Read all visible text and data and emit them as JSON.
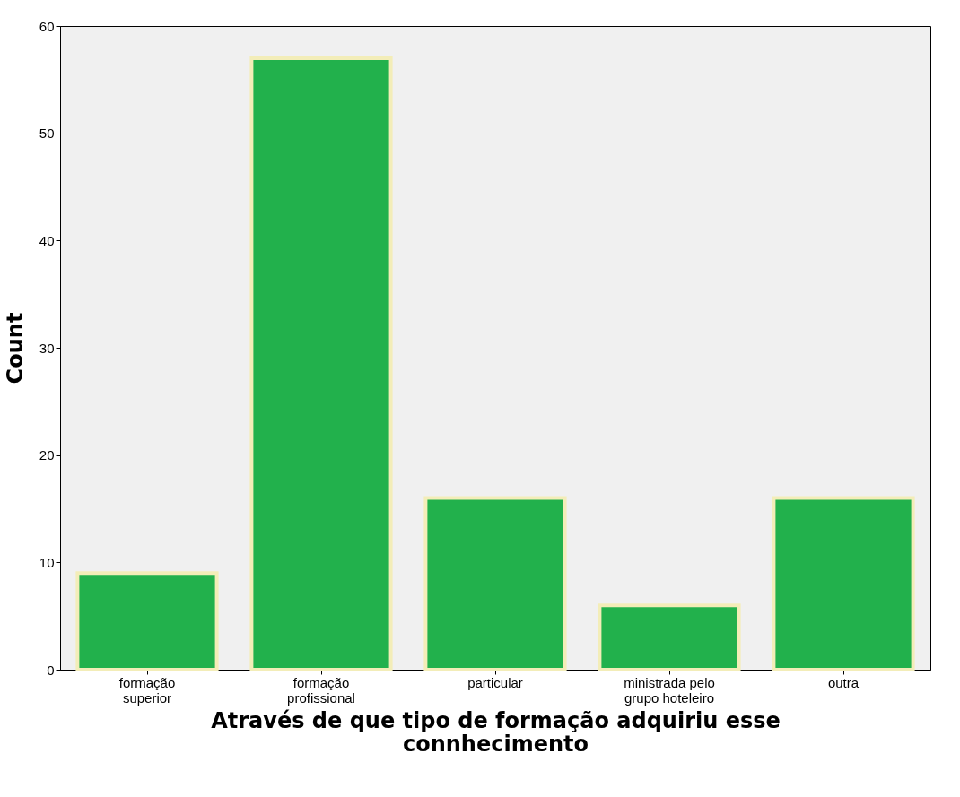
{
  "chart_data": {
    "type": "bar",
    "xlabel": "Através de que tipo de formação adquiriu esse\nconnhecimento",
    "ylabel": "Count",
    "categories": [
      "formação\nsuperior",
      "formação\nprofissional",
      "particular",
      "ministrada pelo\ngrupo hoteleiro",
      "outra"
    ],
    "values": [
      9,
      57,
      16,
      6,
      16
    ],
    "color": "#22b14c",
    "ylim": [
      0,
      60
    ],
    "yticks": [
      0,
      10,
      20,
      30,
      40,
      50,
      60
    ],
    "grid": false
  }
}
